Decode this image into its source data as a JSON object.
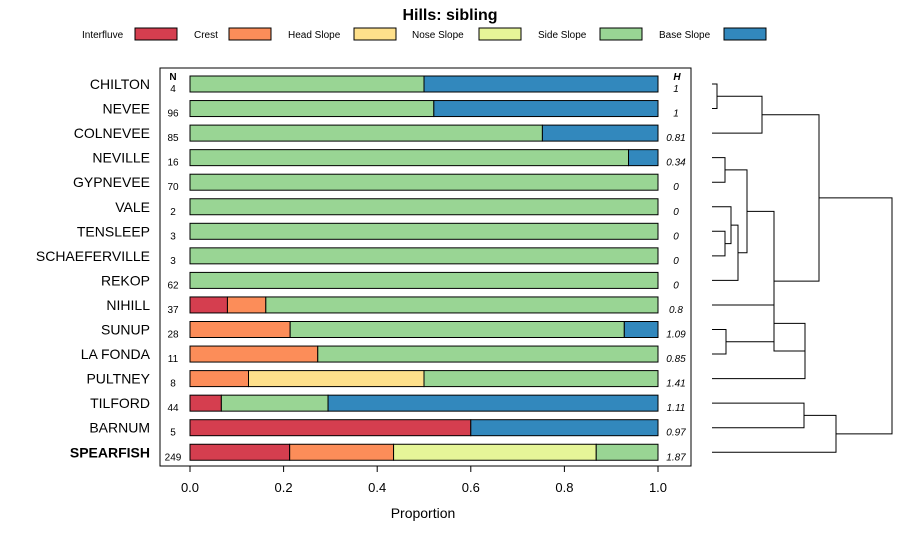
{
  "chart_data": {
    "type": "bar",
    "orientation": "horizontal",
    "stacked": true,
    "title": "Hills: sibling",
    "xlabel": "Proportion",
    "ylabel": "",
    "xlim": [
      0,
      1
    ],
    "x_ticks": [
      "0.0",
      "0.2",
      "0.4",
      "0.6",
      "0.8",
      "1.0"
    ],
    "n_header": "N",
    "h_header": "H",
    "legend": [
      {
        "name": "Interfluve",
        "color": "#d53e4f"
      },
      {
        "name": "Crest",
        "color": "#fc8d59"
      },
      {
        "name": "Head Slope",
        "color": "#fee08b"
      },
      {
        "name": "Nose Slope",
        "color": "#e6f598"
      },
      {
        "name": "Side Slope",
        "color": "#99d594"
      },
      {
        "name": "Base Slope",
        "color": "#3288bd"
      }
    ],
    "categories": [
      "CHILTON",
      "NEVEE",
      "COLNEVEE",
      "NEVILLE",
      "GYPNEVEE",
      "VALE",
      "TENSLEEP",
      "SCHAEFERVILLE",
      "REKOP",
      "NIHILL",
      "SUNUP",
      "LA FONDA",
      "PULTNEY",
      "TILFORD",
      "BARNUM",
      "SPEARFISH"
    ],
    "bold_category": "SPEARFISH",
    "n_values": [
      "4",
      "96",
      "85",
      "16",
      "70",
      "2",
      "3",
      "3",
      "62",
      "37",
      "28",
      "11",
      "8",
      "44",
      "5",
      "249"
    ],
    "h_values": [
      "1",
      "1",
      "0.81",
      "0.34",
      "0",
      "0",
      "0",
      "0",
      "0",
      "0.8",
      "1.09",
      "0.85",
      "1.41",
      "1.11",
      "0.97",
      "1.87"
    ],
    "series": [
      {
        "name": "Interfluve",
        "values": [
          0,
          0,
          0,
          0,
          0,
          0,
          0,
          0,
          0,
          0.08,
          0,
          0,
          0,
          0.067,
          0.6,
          0.213
        ]
      },
      {
        "name": "Crest",
        "values": [
          0,
          0,
          0,
          0,
          0,
          0,
          0,
          0,
          0,
          0.082,
          0.214,
          0.273,
          0.125,
          0,
          0,
          0.222
        ]
      },
      {
        "name": "Head Slope",
        "values": [
          0,
          0,
          0,
          0,
          0,
          0,
          0,
          0,
          0,
          0,
          0,
          0,
          0.375,
          0,
          0,
          0
        ]
      },
      {
        "name": "Nose Slope",
        "values": [
          0,
          0,
          0,
          0,
          0,
          0,
          0,
          0,
          0,
          0,
          0,
          0,
          0,
          0,
          0,
          0.433
        ]
      },
      {
        "name": "Side Slope",
        "values": [
          0.5,
          0.521,
          0.753,
          0.937,
          1,
          1,
          1,
          1,
          1,
          0.838,
          0.714,
          0.727,
          0.5,
          0.228,
          0,
          0.132
        ]
      },
      {
        "name": "Base Slope",
        "values": [
          0.5,
          0.479,
          0.247,
          0.063,
          0,
          0,
          0,
          0,
          0,
          0,
          0.072,
          0,
          0,
          0.705,
          0.4,
          0
        ]
      }
    ],
    "dendrogram": {
      "leaf_order": [
        "CHILTON",
        "NEVEE",
        "COLNEVEE",
        "NEVILLE",
        "GYPNEVEE",
        "VALE",
        "TENSLEEP",
        "SCHAEFERVILLE",
        "REKOP",
        "NIHILL",
        "SUNUP",
        "LA FONDA",
        "PULTNEY",
        "TILFORD",
        "BARNUM",
        "SPEARFISH"
      ]
    }
  }
}
